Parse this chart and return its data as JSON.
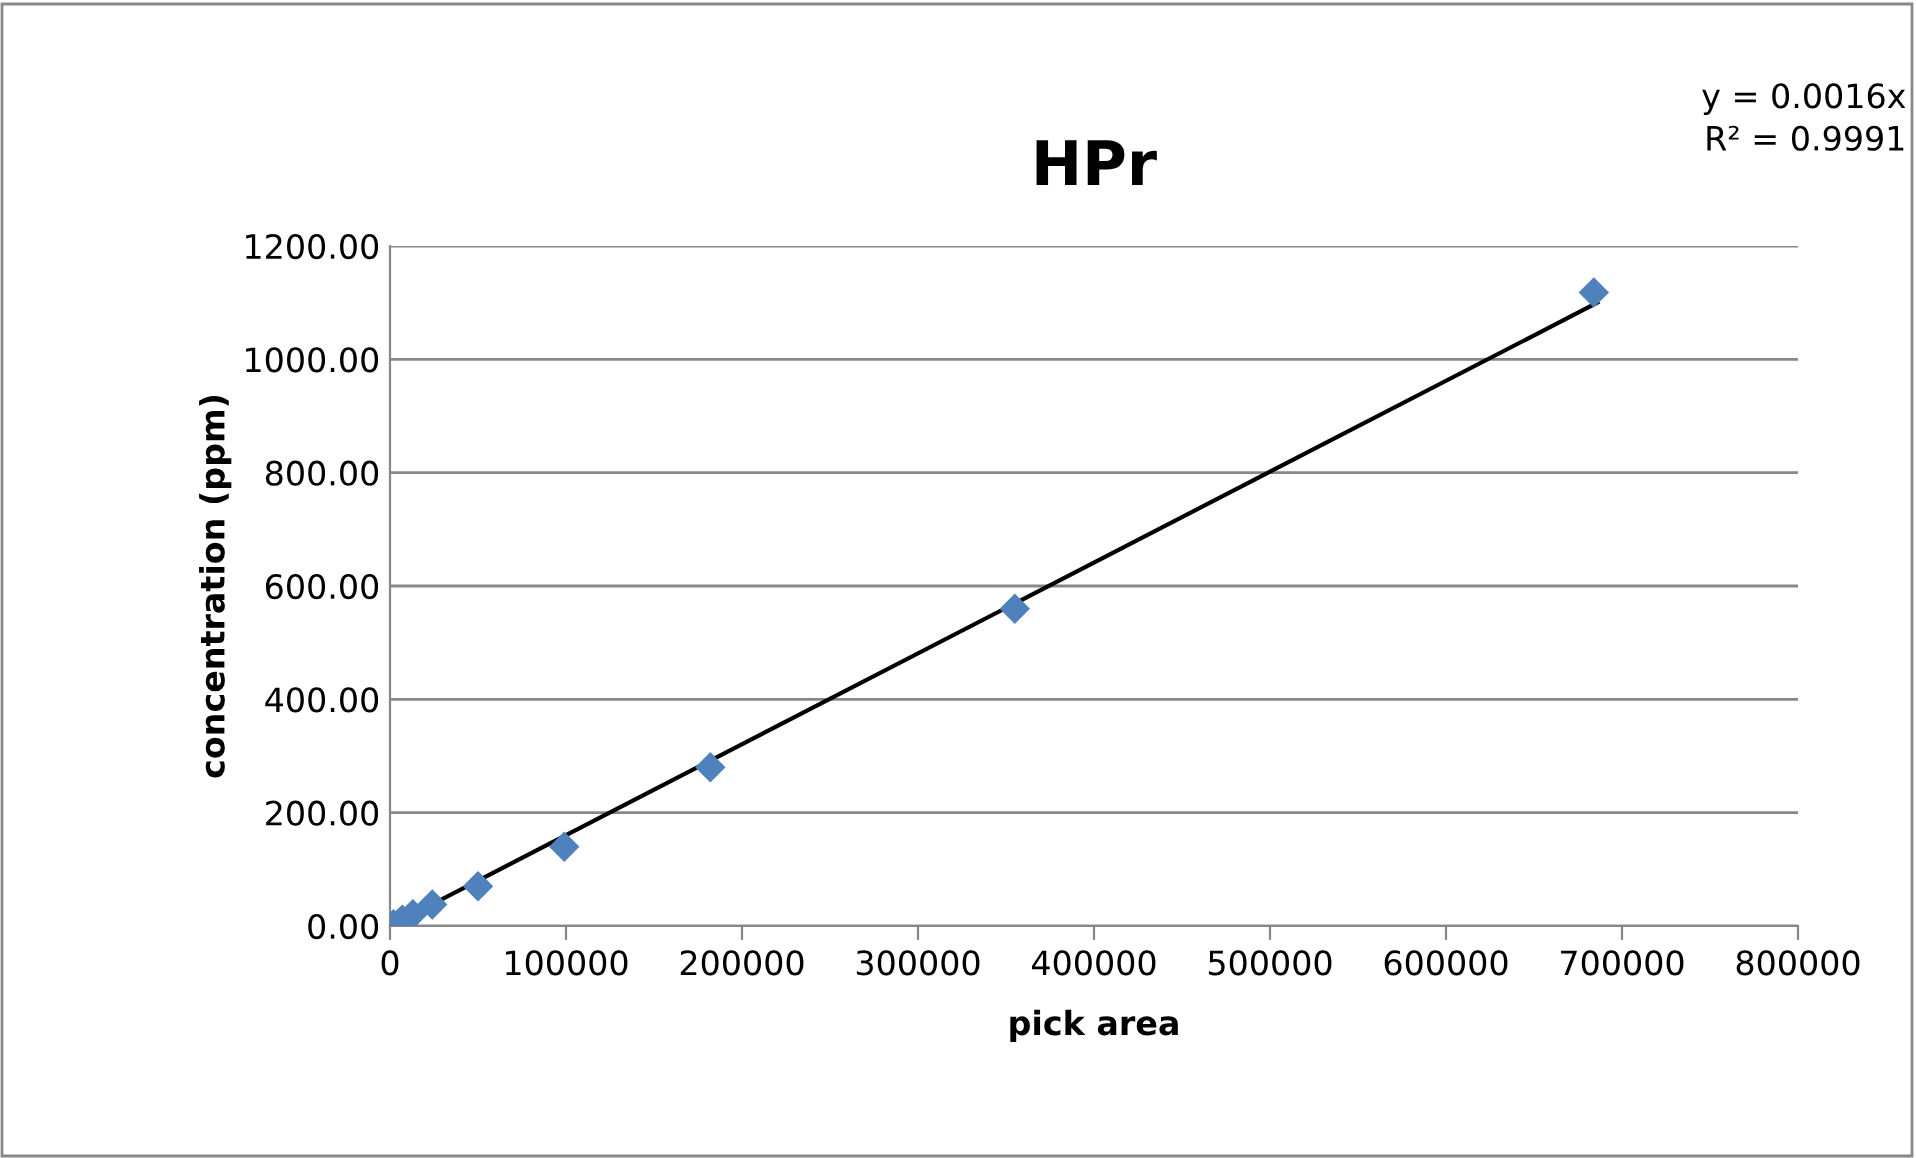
{
  "chart_data": {
    "type": "scatter",
    "title": "HPr",
    "xlabel": "pick area",
    "ylabel": "concentration (ppm)",
    "annotations": [
      "y = 0.0016x",
      "R² = 0.9991"
    ],
    "series": [
      {
        "type": "scatter",
        "color": "#4f81bd",
        "marker": "diamond",
        "x": [
          2000,
          7000,
          13000,
          24000,
          50000,
          99000,
          182000,
          355000,
          684000
        ],
        "values": [
          3,
          11,
          21,
          38,
          70,
          140,
          280,
          560,
          1118
        ]
      },
      {
        "type": "line",
        "color": "#000000",
        "marker": "none",
        "line_style": "solid",
        "x": [
          0,
          686000
        ],
        "values": [
          0,
          1100
        ]
      }
    ],
    "xlim": [
      0,
      800000
    ],
    "xticks": [
      0,
      100000,
      200000,
      300000,
      400000,
      500000,
      600000,
      700000,
      800000
    ],
    "ylim": [
      0,
      1200
    ],
    "yticks": [
      {
        "value": 0,
        "label": "0.00"
      },
      {
        "value": 200,
        "label": "200.00"
      },
      {
        "value": 400,
        "label": "400.00"
      },
      {
        "value": 600,
        "label": "600.00"
      },
      {
        "value": 800,
        "label": "800.00"
      },
      {
        "value": 1000,
        "label": "1000.00"
      },
      {
        "value": 1200,
        "label": "1200.00"
      }
    ],
    "grid": "y",
    "legend": false
  }
}
